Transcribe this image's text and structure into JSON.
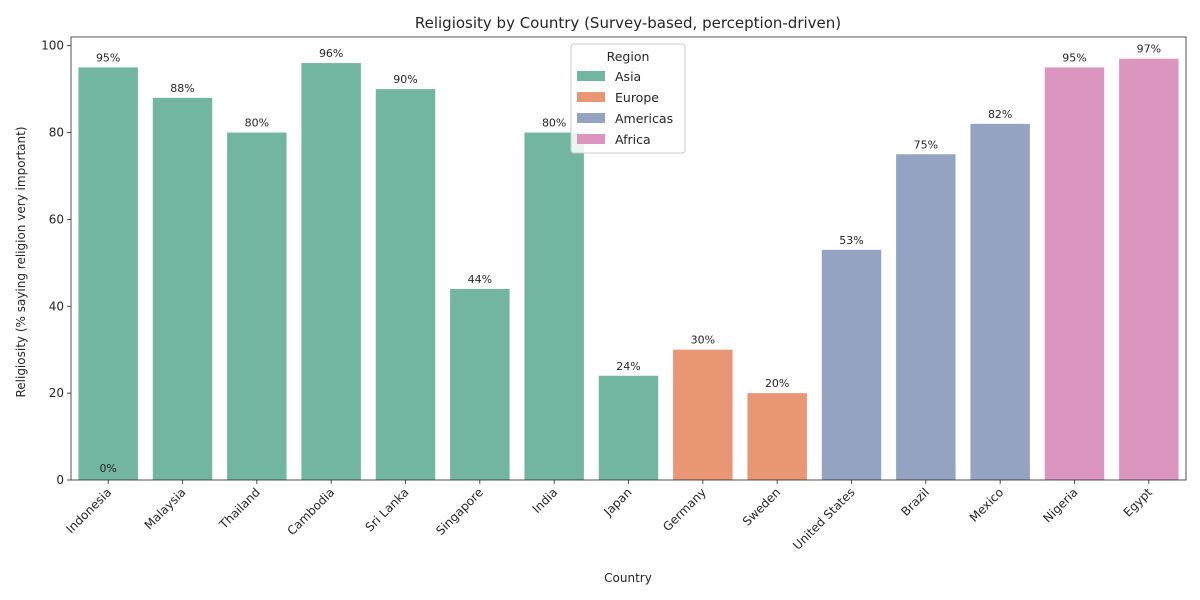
{
  "chart_data": {
    "type": "bar",
    "title": "Religiosity by Country (Survey-based, perception-driven)",
    "xlabel": "Country",
    "ylabel": "Religiosity (% saying religion very important)",
    "ylim": [
      0,
      102
    ],
    "yticks": [
      0,
      20,
      40,
      60,
      80,
      100
    ],
    "categories": [
      "Indonesia",
      "Malaysia",
      "Thailand",
      "Cambodia",
      "Sri Lanka",
      "Singapore",
      "India",
      "Japan",
      "Germany",
      "Sweden",
      "United States",
      "Brazil",
      "Mexico",
      "Nigeria",
      "Egypt"
    ],
    "values": [
      95,
      88,
      80,
      96,
      90,
      44,
      80,
      24,
      30,
      20,
      53,
      75,
      82,
      95,
      97
    ],
    "regions": [
      "Asia",
      "Asia",
      "Asia",
      "Asia",
      "Asia",
      "Asia",
      "Asia",
      "Asia",
      "Europe",
      "Europe",
      "Americas",
      "Americas",
      "Americas",
      "Africa",
      "Africa"
    ],
    "data_labels": [
      "95%",
      "88%",
      "80%",
      "96%",
      "90%",
      "44%",
      "80%",
      "24%",
      "30%",
      "20%",
      "53%",
      "75%",
      "82%",
      "95%",
      "97%"
    ],
    "extra_labels": [
      {
        "category": "Indonesia",
        "text": "0%"
      }
    ],
    "legend": {
      "title": "Region",
      "placement": "top-center",
      "entries": [
        {
          "name": "Asia",
          "color": "#72b6a1"
        },
        {
          "name": "Europe",
          "color": "#e99675"
        },
        {
          "name": "Americas",
          "color": "#95a3c3"
        },
        {
          "name": "Africa",
          "color": "#db96c0"
        }
      ]
    },
    "grid": false
  }
}
